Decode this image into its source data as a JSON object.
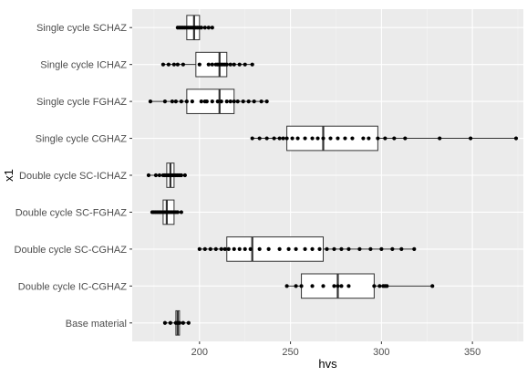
{
  "chart_data": {
    "type": "boxplot",
    "orientation": "horizontal",
    "xlabel": "hvs",
    "ylabel": "x1",
    "xlim": [
      163,
      378
    ],
    "x_ticks": [
      200,
      250,
      300,
      350
    ],
    "grid": true,
    "colors": {
      "panel": "#ebebeb",
      "grid_major": "#ffffff",
      "box_fill": "#ffffff",
      "box_stroke": "#333333",
      "point": "#000000"
    },
    "categories": [
      "Single cycle SCHAZ",
      "Single cycle ICHAZ",
      "Single cycle FGHAZ",
      "Single cycle CGHAZ",
      "Double cycle SC-ICHAZ",
      "Double cycle SC-FGHAZ",
      "Double cycle SC-CGHAZ",
      "Double cycle IC-CGHAZ",
      "Base material"
    ],
    "series": [
      {
        "category": "Single cycle SCHAZ",
        "min": 188,
        "q1": 193,
        "median": 197,
        "q3": 200,
        "max": 207,
        "points": [
          188,
          189,
          190,
          191,
          192,
          193,
          194,
          195,
          196,
          197,
          198,
          199,
          200,
          201,
          203,
          205,
          207
        ]
      },
      {
        "category": "Single cycle ICHAZ",
        "min": 180,
        "q1": 198,
        "median": 211,
        "q3": 215,
        "max": 229,
        "points": [
          180,
          183,
          186,
          188,
          191,
          200,
          205,
          207,
          209,
          210,
          211,
          212,
          213,
          214,
          215,
          217,
          219,
          222,
          225,
          229
        ]
      },
      {
        "category": "Single cycle FGHAZ",
        "min": 173,
        "q1": 193,
        "median": 211,
        "q3": 219,
        "max": 237,
        "points": [
          173,
          181,
          185,
          187,
          190,
          193,
          196,
          201,
          203,
          204,
          207,
          210,
          212,
          215,
          217,
          219,
          221,
          224,
          227,
          230,
          234,
          237
        ]
      },
      {
        "category": "Single cycle CGHAZ",
        "min": 229,
        "q1": 248,
        "median": 268,
        "q3": 298,
        "max": 374,
        "points": [
          229,
          233,
          237,
          241,
          244,
          246,
          248,
          251,
          254,
          258,
          262,
          265,
          268,
          272,
          276,
          280,
          284,
          290,
          293,
          298,
          302,
          307,
          313,
          332,
          349,
          374
        ]
      },
      {
        "category": "Double cycle SC-ICHAZ",
        "min": 172,
        "q1": 182,
        "median": 184,
        "q3": 186,
        "max": 192,
        "points": [
          172,
          176,
          178,
          180,
          181,
          182,
          183,
          184,
          185,
          186,
          187,
          188,
          189,
          190,
          192
        ]
      },
      {
        "category": "Double cycle SC-FGHAZ",
        "min": 174,
        "q1": 180,
        "median": 182,
        "q3": 186,
        "max": 190,
        "points": [
          174,
          175,
          176,
          177,
          178,
          179,
          180,
          181,
          182,
          183,
          184,
          185,
          186,
          187,
          188,
          190
        ]
      },
      {
        "category": "Double cycle SC-CGHAZ",
        "min": 200,
        "q1": 215,
        "median": 229,
        "q3": 268,
        "max": 318,
        "points": [
          200,
          203,
          206,
          209,
          212,
          214,
          216,
          219,
          222,
          225,
          228,
          233,
          238,
          244,
          249,
          253,
          258,
          262,
          266,
          270,
          274,
          278,
          282,
          288,
          294,
          300,
          306,
          311,
          318
        ]
      },
      {
        "category": "Double cycle IC-CGHAZ",
        "min": 248,
        "q1": 256,
        "median": 276,
        "q3": 296,
        "max": 328,
        "points": [
          248,
          253,
          256,
          262,
          268,
          274,
          276,
          278,
          282,
          296,
          299,
          301,
          302,
          303,
          328
        ]
      },
      {
        "category": "Base material",
        "min": 181,
        "q1": 187,
        "median": 188,
        "q3": 189,
        "max": 194,
        "points": [
          181,
          184,
          187,
          188,
          189,
          191,
          194
        ]
      }
    ]
  }
}
